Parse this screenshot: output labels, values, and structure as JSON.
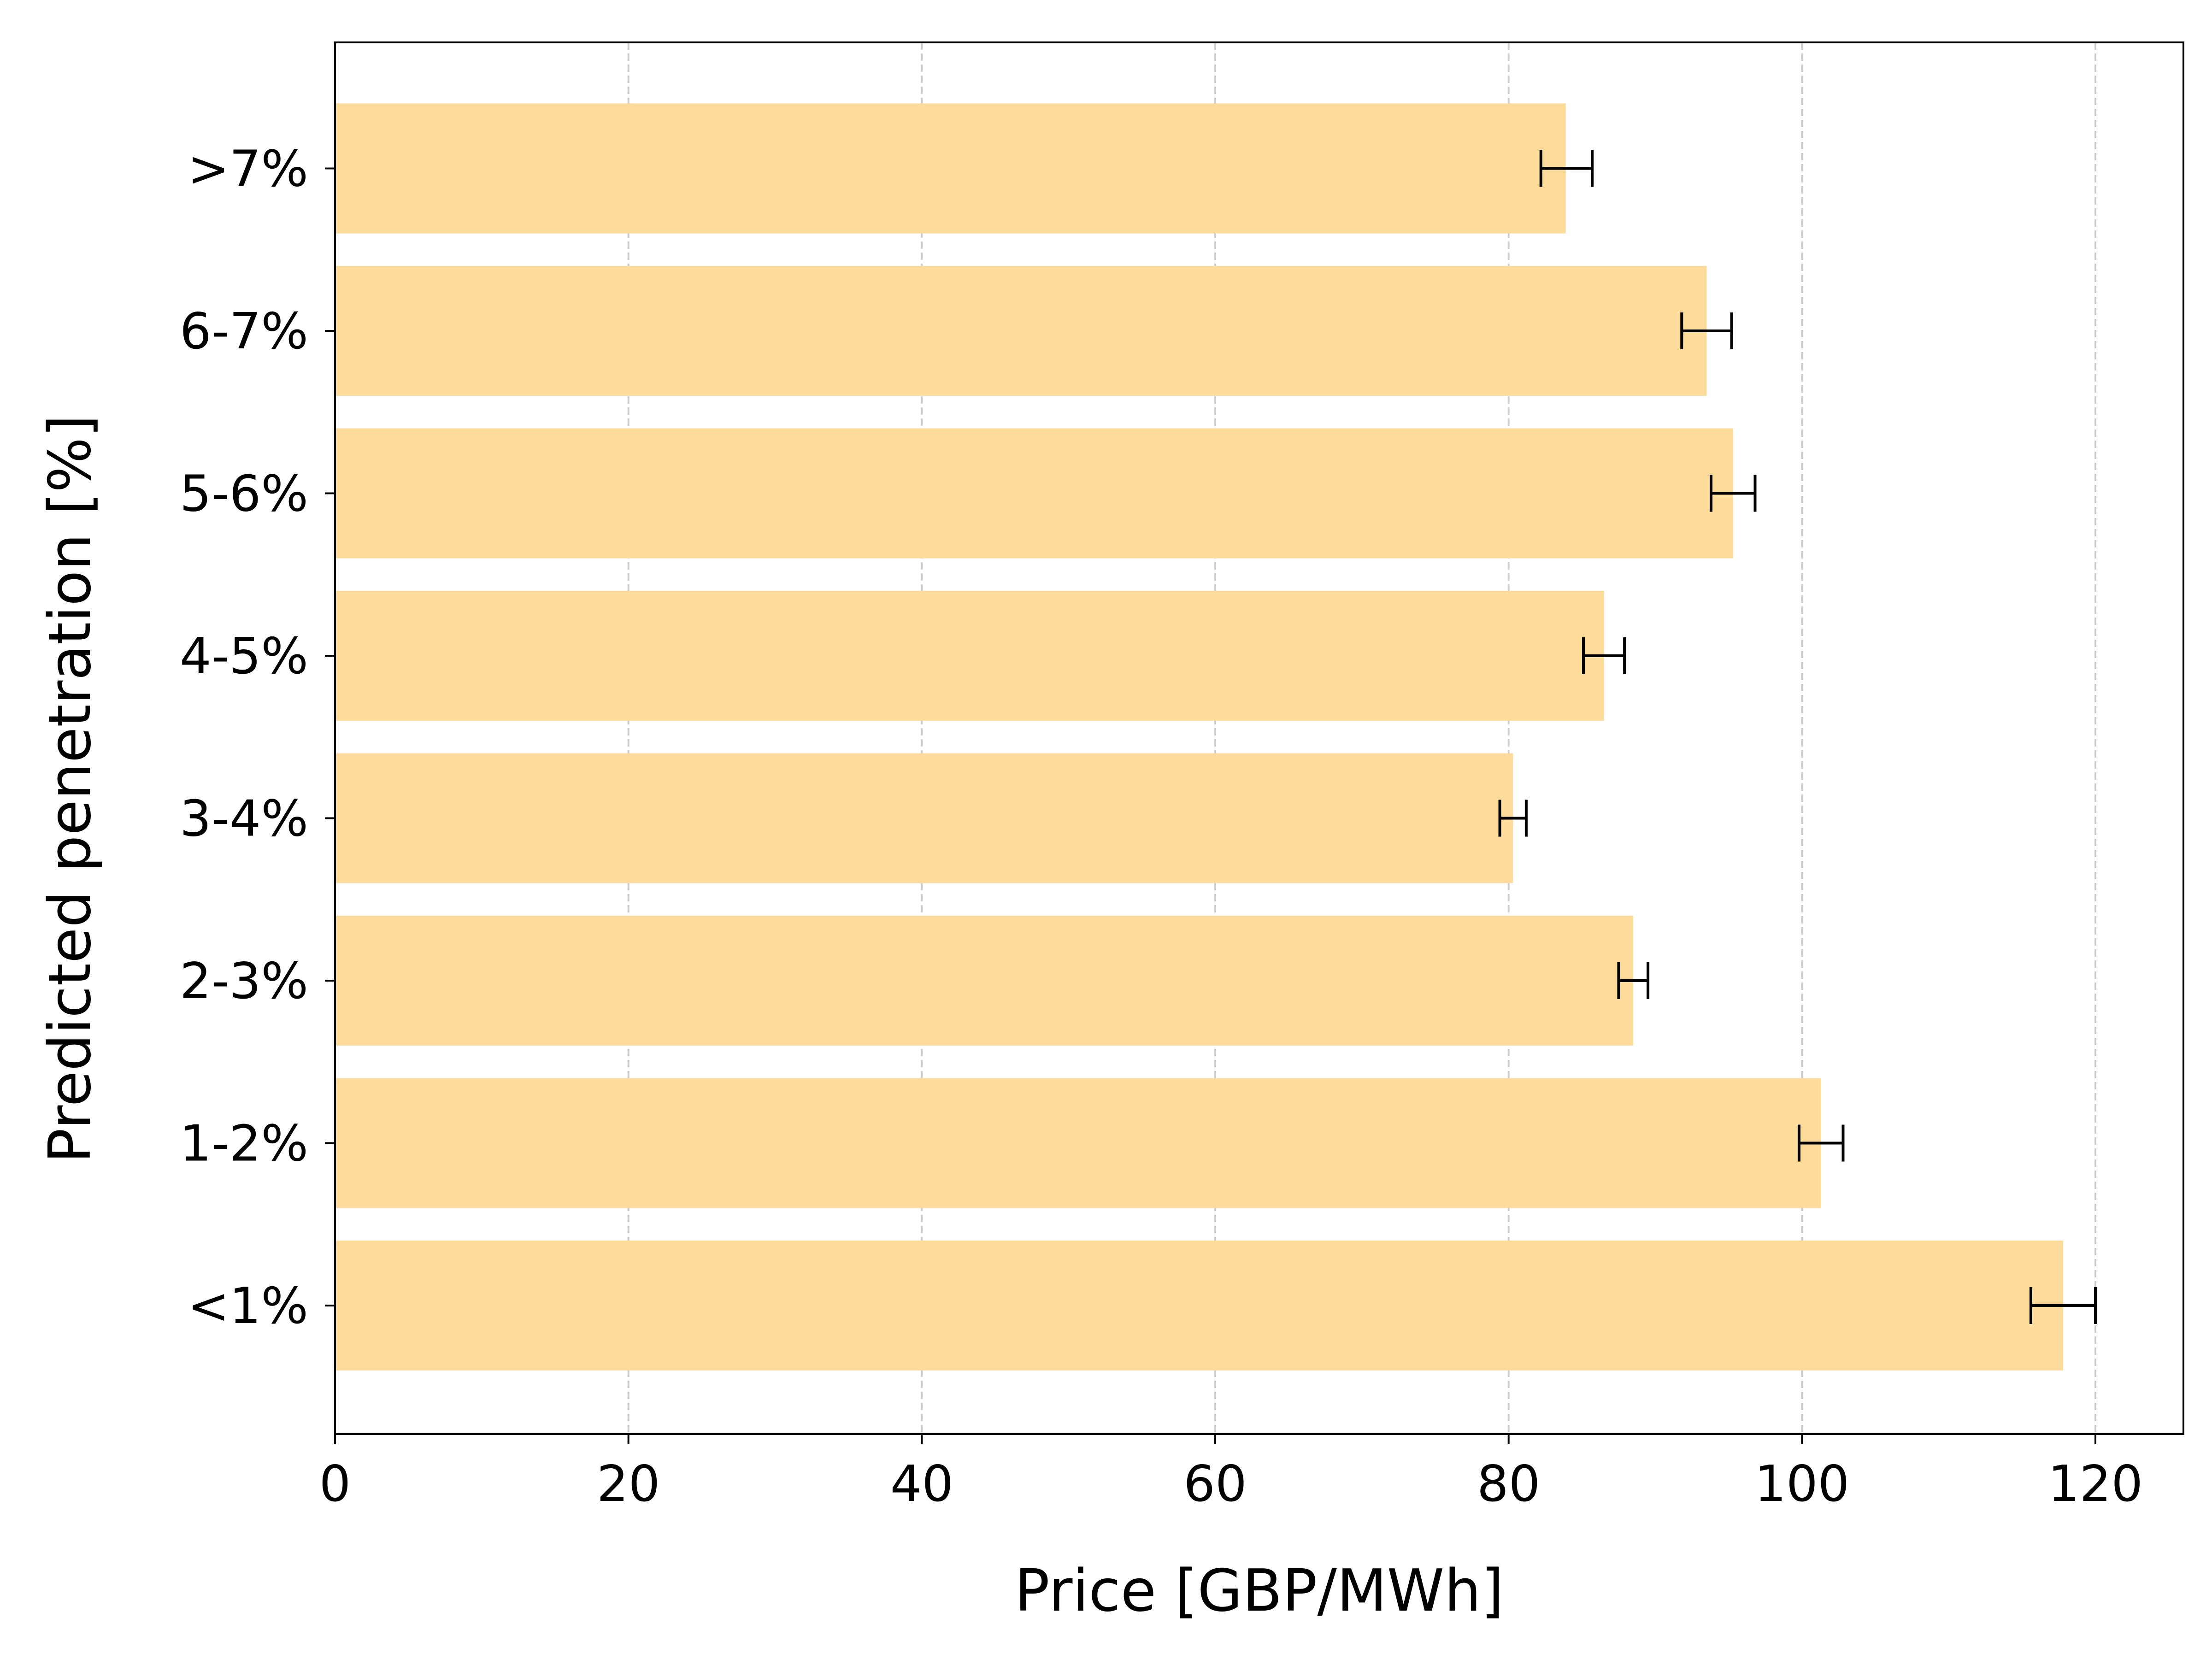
{
  "chart_data": {
    "type": "bar",
    "orientation": "horizontal",
    "title": "",
    "xlabel": "Price [GBP/MWh]",
    "ylabel": "Predicted penetration [%]",
    "xlim": [
      0,
      126
    ],
    "x_ticks": [
      0,
      20,
      40,
      60,
      80,
      100,
      120
    ],
    "grid": "vertical-dashed",
    "categories": [
      "<1%",
      "1-2%",
      "2-3%",
      "3-4%",
      "4-5%",
      "5-6%",
      "6-7%",
      ">7%"
    ],
    "values": [
      117.8,
      101.3,
      88.5,
      80.3,
      86.5,
      95.3,
      93.5,
      83.9
    ],
    "error_low": [
      115.6,
      99.8,
      87.5,
      79.4,
      85.1,
      93.8,
      91.8,
      82.2
    ],
    "error_high": [
      120.0,
      102.8,
      89.5,
      81.2,
      87.9,
      96.8,
      95.2,
      85.7
    ],
    "colors": {
      "bar": "#fddb9b",
      "error": "#000000",
      "grid": "#cccccc",
      "axis": "#000000"
    }
  }
}
